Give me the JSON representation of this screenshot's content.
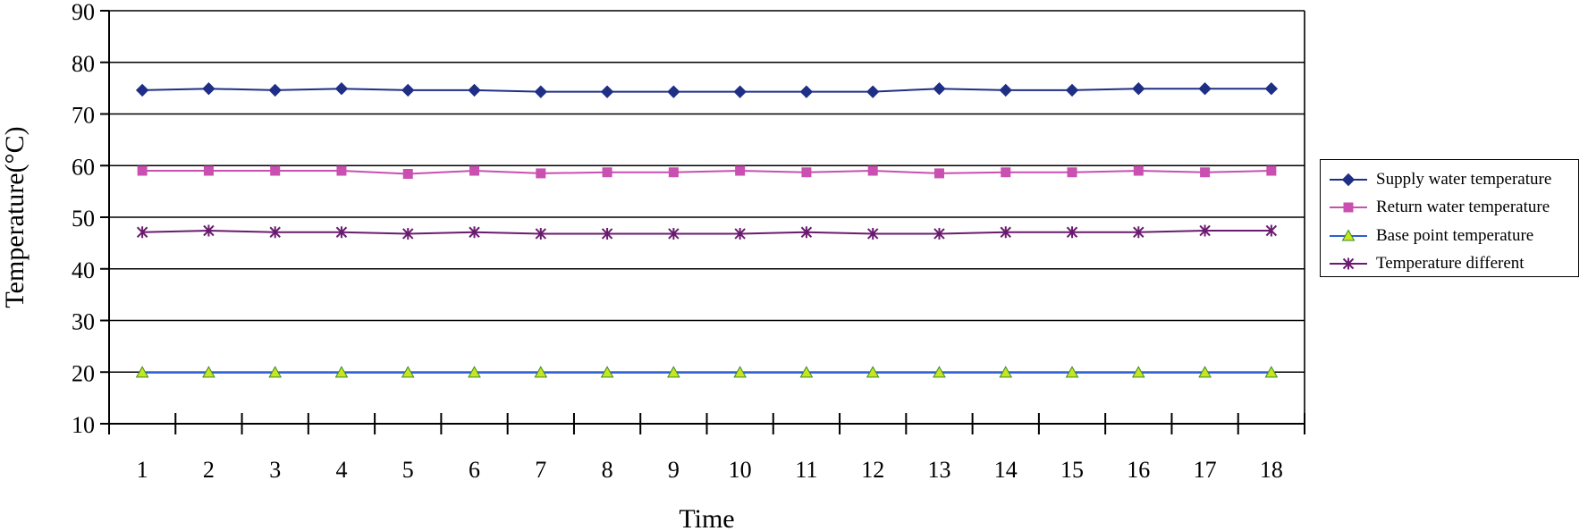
{
  "chart_data": {
    "type": "line",
    "title": "",
    "xlabel": "Time",
    "ylabel": "Temperature(°C)",
    "ylim": [
      10,
      90
    ],
    "yticks": [
      "10",
      "20",
      "30",
      "40",
      "50",
      "60",
      "70",
      "80",
      "90"
    ],
    "categories": [
      "1",
      "2",
      "3",
      "4",
      "5",
      "6",
      "7",
      "8",
      "9",
      "10",
      "11",
      "12",
      "13",
      "14",
      "15",
      "16",
      "17",
      "18"
    ],
    "grid": "horizontal",
    "legend_position": "right",
    "series": [
      {
        "name": "Supply water temperature",
        "color": "#1f2f86",
        "marker": "diamond",
        "values": [
          74.6,
          74.9,
          74.6,
          74.9,
          74.6,
          74.6,
          74.3,
          74.3,
          74.3,
          74.3,
          74.3,
          74.3,
          74.9,
          74.6,
          74.6,
          74.9,
          74.9,
          74.9
        ]
      },
      {
        "name": "Return water temperature",
        "color": "#c94fb0",
        "marker": "square",
        "values": [
          59.0,
          59.0,
          59.0,
          59.0,
          58.4,
          59.0,
          58.5,
          58.7,
          58.7,
          59.0,
          58.7,
          59.0,
          58.5,
          58.7,
          58.7,
          59.0,
          58.7,
          59.0
        ]
      },
      {
        "name": "Base point temperature",
        "color": "#2d5fd3",
        "marker": "triangle",
        "marker_fill": "#c8e61e",
        "values": [
          19.9,
          19.9,
          19.9,
          19.9,
          19.9,
          19.9,
          19.9,
          19.9,
          19.9,
          19.9,
          19.9,
          19.9,
          19.9,
          19.9,
          19.9,
          19.9,
          19.9,
          19.9
        ]
      },
      {
        "name": "Temperature different",
        "color": "#6a1b6f",
        "marker": "star",
        "values": [
          47.1,
          47.4,
          47.1,
          47.1,
          46.8,
          47.1,
          46.8,
          46.8,
          46.8,
          46.8,
          47.1,
          46.8,
          46.8,
          47.1,
          47.1,
          47.1,
          47.4,
          47.4
        ]
      }
    ]
  }
}
